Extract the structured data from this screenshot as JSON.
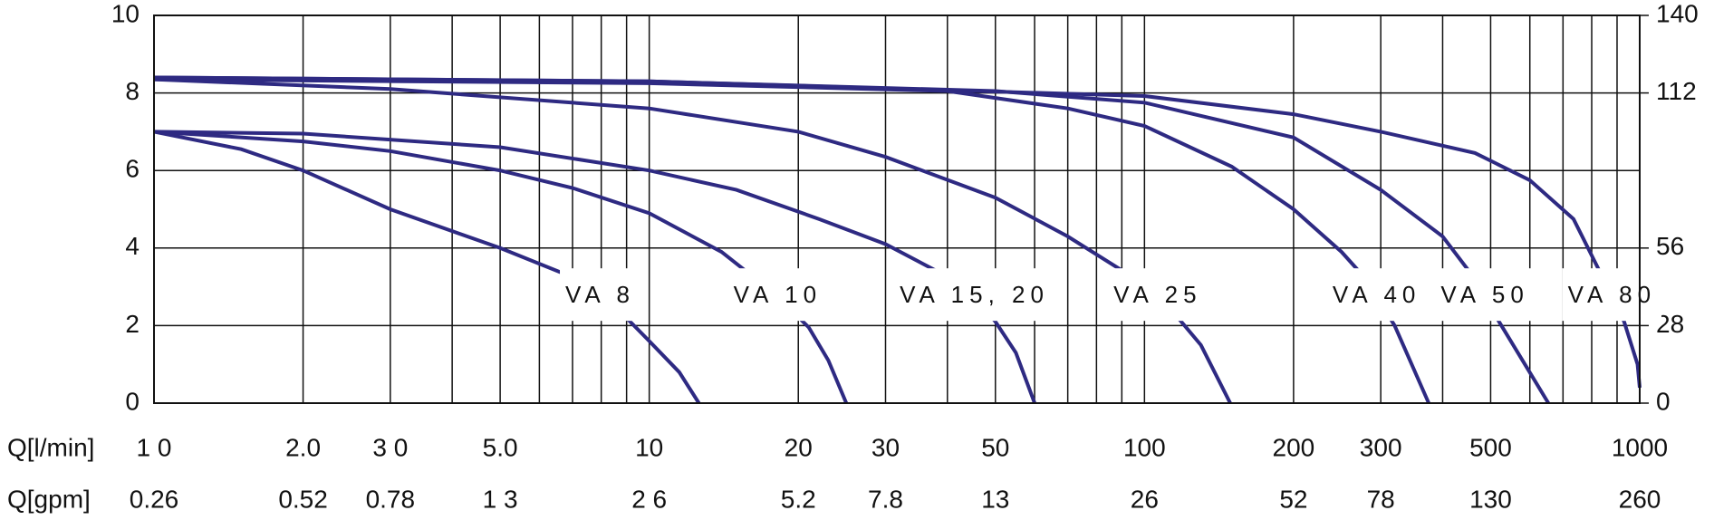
{
  "chart_data": {
    "type": "line",
    "x_label": "Q[l/min]",
    "x2_label": "Q[gpm]",
    "xscale": "log",
    "xlim": [
      1,
      1000
    ],
    "ylim": [
      0,
      10
    ],
    "y2lim": [
      0,
      140
    ],
    "grid": true,
    "xticks": [
      {
        "value": 1,
        "label": "1 0"
      },
      {
        "value": 2,
        "label": "2.0"
      },
      {
        "value": 3,
        "label": "3 0"
      },
      {
        "value": 5,
        "label": "5.0"
      },
      10,
      20,
      30,
      50,
      100,
      200,
      300,
      500,
      1000
    ],
    "x2ticks": [
      {
        "value": 1,
        "label": "0.26"
      },
      {
        "value": 2,
        "label": "0.52"
      },
      {
        "value": 3,
        "label": "0.78"
      },
      {
        "value": 5,
        "label": "1 3"
      },
      {
        "value": 10,
        "label": "2 6"
      },
      {
        "value": 20,
        "label": "5.2"
      },
      {
        "value": 30,
        "label": "7.8"
      },
      {
        "value": 50,
        "label": "13"
      },
      {
        "value": 100,
        "label": "26"
      },
      {
        "value": 200,
        "label": "52"
      },
      {
        "value": 300,
        "label": "78"
      },
      {
        "value": 500,
        "label": "130"
      },
      {
        "value": 1000,
        "label": "260"
      }
    ],
    "xminor": [
      1,
      2,
      3,
      4,
      5,
      6,
      7,
      8,
      9,
      10,
      20,
      30,
      40,
      50,
      60,
      70,
      80,
      90,
      100,
      200,
      300,
      400,
      500,
      600,
      700,
      800,
      900,
      1000
    ],
    "yticks": [
      0,
      2,
      4,
      6,
      8,
      10
    ],
    "y2ticks": [
      0,
      28,
      56,
      112,
      140
    ],
    "series": [
      {
        "name": "VA 8",
        "color": "#2e2a82",
        "x": [
          1,
          1.5,
          2,
          3,
          5,
          7,
          8.6,
          10,
          11.5,
          12.6
        ],
        "values": [
          7.0,
          6.55,
          6.0,
          5.0,
          4.0,
          3.25,
          2.45,
          1.6,
          0.8,
          0
        ]
      },
      {
        "name": "VA 10",
        "color": "#2e2a82",
        "x": [
          1,
          2,
          3,
          5,
          7,
          10,
          14,
          18,
          21,
          23,
          25
        ],
        "values": [
          7.0,
          6.75,
          6.5,
          6.0,
          5.55,
          4.9,
          3.9,
          2.8,
          1.95,
          1.1,
          0
        ]
      },
      {
        "name": "VA 15, 20",
        "color": "#2e2a82",
        "x": [
          1,
          2,
          5,
          10,
          15,
          22,
          30,
          39.5,
          45,
          50,
          55,
          60
        ],
        "values": [
          7.0,
          6.95,
          6.6,
          6.0,
          5.5,
          4.75,
          4.1,
          3.3,
          2.8,
          2.1,
          1.3,
          0
        ]
      },
      {
        "name": "VA 25",
        "color": "#2e2a82",
        "x": [
          1,
          3,
          10,
          20,
          30,
          50,
          70,
          96,
          110,
          130,
          149
        ],
        "values": [
          8.35,
          8.1,
          7.6,
          7.0,
          6.35,
          5.3,
          4.3,
          3.2,
          2.6,
          1.5,
          0
        ]
      },
      {
        "name": "VA 40",
        "color": "#2e2a82",
        "x": [
          1,
          10,
          40,
          70,
          100,
          150,
          200,
          250,
          280,
          320,
          375
        ],
        "values": [
          8.35,
          8.25,
          8.05,
          7.6,
          7.15,
          6.1,
          5.0,
          3.9,
          3.2,
          2.0,
          0
        ]
      },
      {
        "name": "VA 50",
        "color": "#2e2a82",
        "x": [
          1,
          10,
          50,
          100,
          200,
          300,
          400,
          465,
          520,
          580,
          654
        ],
        "values": [
          8.4,
          8.3,
          8.05,
          7.75,
          6.85,
          5.5,
          4.3,
          3.2,
          2.1,
          1.1,
          0
        ]
      },
      {
        "name": "VA 80",
        "color": "#2e2a82",
        "x": [
          1,
          10,
          100,
          200,
          300,
          465,
          600,
          735,
          845,
          930,
          990,
          1000
        ],
        "values": [
          8.4,
          8.3,
          7.92,
          7.45,
          7.0,
          6.45,
          5.75,
          4.75,
          3.2,
          2.1,
          1.0,
          0.4
        ]
      }
    ]
  }
}
